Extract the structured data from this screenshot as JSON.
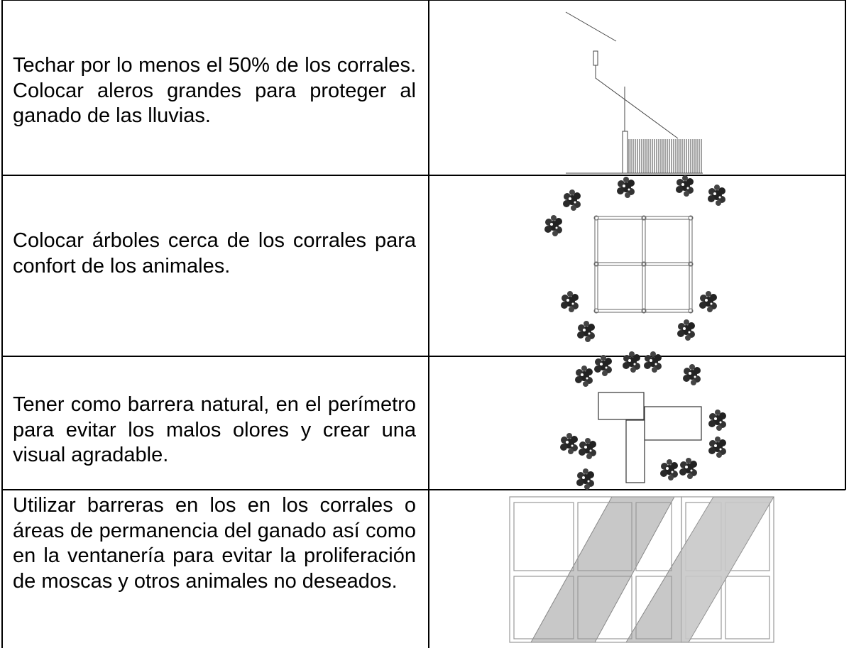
{
  "table": {
    "rows": [
      {
        "text": "Techar por lo menos el 50% de los corrales. Colocar aleros grandes para proteger al ganado de las lluvias."
      },
      {
        "text": "Colocar árboles cerca de los corrales para confort de los animales."
      },
      {
        "text": "Tener como barrera natural, en el perímetro para evitar los malos olores y crear una visual agradable."
      },
      {
        "text": "Utilizar barreras en los en los corrales o áreas de permanencia del ganado así como en la ventanería para evitar la proliferación de moscas y otros animales no deseados."
      }
    ]
  }
}
